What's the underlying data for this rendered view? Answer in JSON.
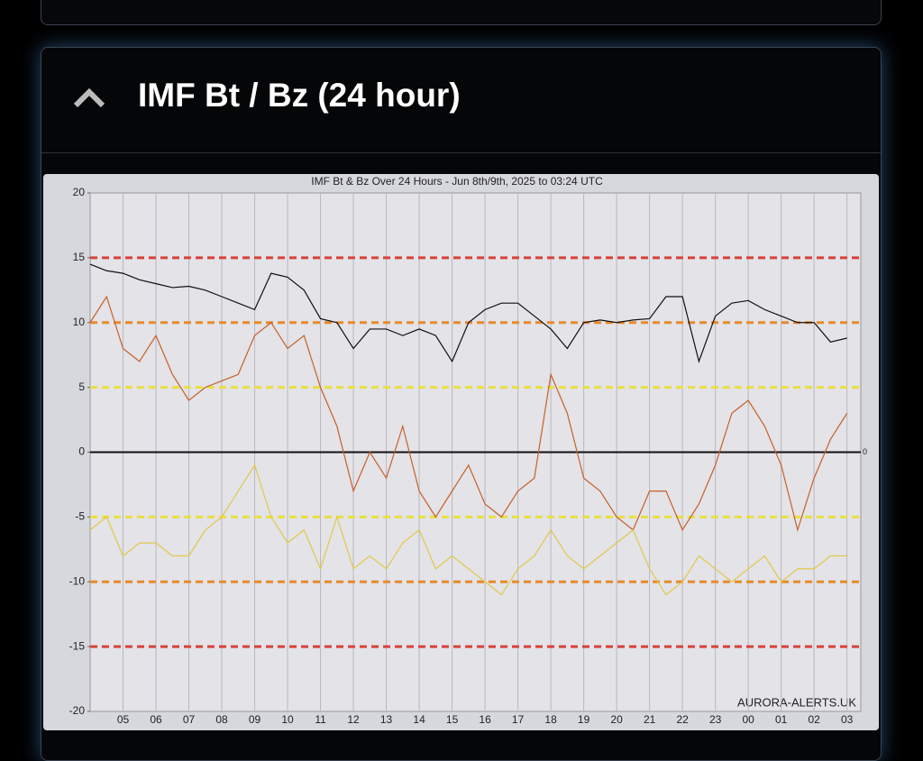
{
  "header": {
    "title": "IMF Bt / Bz (24 hour)"
  },
  "chart_data": {
    "type": "line",
    "title": "IMF Bt & Bz Over 24 Hours - Jun 8th/9th, 2025 to 03:24 UTC",
    "watermark": "AURORA-ALERTS.UK",
    "x": [
      0,
      0.5,
      1,
      1.5,
      2,
      2.5,
      3,
      3.5,
      4,
      4.5,
      5,
      5.5,
      6,
      6.5,
      7,
      7.5,
      8,
      8.5,
      9,
      9.5,
      10,
      10.5,
      11,
      11.5,
      12,
      12.5,
      13,
      13.5,
      14,
      14.5,
      15,
      15.5,
      16,
      16.5,
      17,
      17.5,
      18,
      18.5,
      19,
      19.5,
      20,
      20.5,
      21,
      21.5,
      22,
      22.5,
      23
    ],
    "series": [
      {
        "color": "#111111",
        "values": [
          14.5,
          14,
          13.8,
          13.3,
          13,
          12.7,
          12.8,
          12.5,
          12,
          11.5,
          11,
          13.8,
          13.5,
          12.5,
          10.3,
          10,
          8,
          9.5,
          9.5,
          9,
          9.5,
          9,
          7,
          10,
          11,
          11.5,
          11.5,
          10.5,
          9.5,
          8,
          10,
          10.2,
          10,
          10.2,
          10.3,
          12,
          12,
          7,
          10.5,
          11.5,
          11.7,
          11,
          10.5,
          10,
          10,
          8.5,
          8.8
        ]
      },
      {
        "color": "#c8602a",
        "values": [
          10,
          12,
          8,
          7,
          9,
          6,
          4,
          5,
          5.5,
          6,
          9,
          10,
          8,
          9,
          5,
          2,
          -3,
          0,
          -2,
          2,
          -3,
          -5,
          -3,
          -1,
          -4,
          -5,
          -3,
          -2,
          6,
          3,
          -2,
          -3,
          -5,
          -6,
          -3,
          -3,
          -6,
          -4,
          -1,
          3,
          4,
          2,
          -1,
          -6,
          -2,
          1,
          3
        ]
      },
      {
        "color": "#e3c84a",
        "values": [
          -6,
          -5,
          -8,
          -7,
          -7,
          -8,
          -8,
          -6,
          -5,
          -3,
          -1,
          -5,
          -7,
          -6,
          -9,
          -5,
          -9,
          -8,
          -9,
          -7,
          -6,
          -9,
          -8,
          -9,
          -10,
          -11,
          -9,
          -8,
          -6,
          -8,
          -9,
          -8,
          -7,
          -6,
          -9,
          -11,
          -10,
          -8,
          -9,
          -10,
          -9,
          -8,
          -10,
          -9,
          -9,
          -8,
          -8
        ]
      }
    ],
    "xlim": [
      0,
      23.42
    ],
    "xticks": [
      {
        "value": 1,
        "label": "05"
      },
      {
        "value": 2,
        "label": "06"
      },
      {
        "value": 3,
        "label": "07"
      },
      {
        "value": 4,
        "label": "08"
      },
      {
        "value": 5,
        "label": "09"
      },
      {
        "value": 6,
        "label": "10"
      },
      {
        "value": 7,
        "label": "11"
      },
      {
        "value": 8,
        "label": "12"
      },
      {
        "value": 9,
        "label": "13"
      },
      {
        "value": 10,
        "label": "14"
      },
      {
        "value": 11,
        "label": "15"
      },
      {
        "value": 12,
        "label": "16"
      },
      {
        "value": 13,
        "label": "17"
      },
      {
        "value": 14,
        "label": "18"
      },
      {
        "value": 15,
        "label": "19"
      },
      {
        "value": 16,
        "label": "20"
      },
      {
        "value": 17,
        "label": "21"
      },
      {
        "value": 18,
        "label": "22"
      },
      {
        "value": 19,
        "label": "23"
      },
      {
        "value": 20,
        "label": "00"
      },
      {
        "value": 21,
        "label": "01"
      },
      {
        "value": 22,
        "label": "02"
      },
      {
        "value": 23,
        "label": "03"
      }
    ],
    "ylim": [
      -20,
      20
    ],
    "yticks": [
      -20,
      -15,
      -10,
      -5,
      0,
      5,
      10,
      15,
      20
    ],
    "grid": true,
    "thresholds": [
      {
        "value": 15,
        "color": "#d9403a"
      },
      {
        "value": 10,
        "color": "#e88a2a"
      },
      {
        "value": 5,
        "color": "#e8e040"
      },
      {
        "value": -5,
        "color": "#e8e040"
      },
      {
        "value": -10,
        "color": "#e88a2a"
      },
      {
        "value": -15,
        "color": "#d9403a"
      }
    ],
    "annotations": [
      {
        "text": "0",
        "y": 0
      }
    ]
  }
}
